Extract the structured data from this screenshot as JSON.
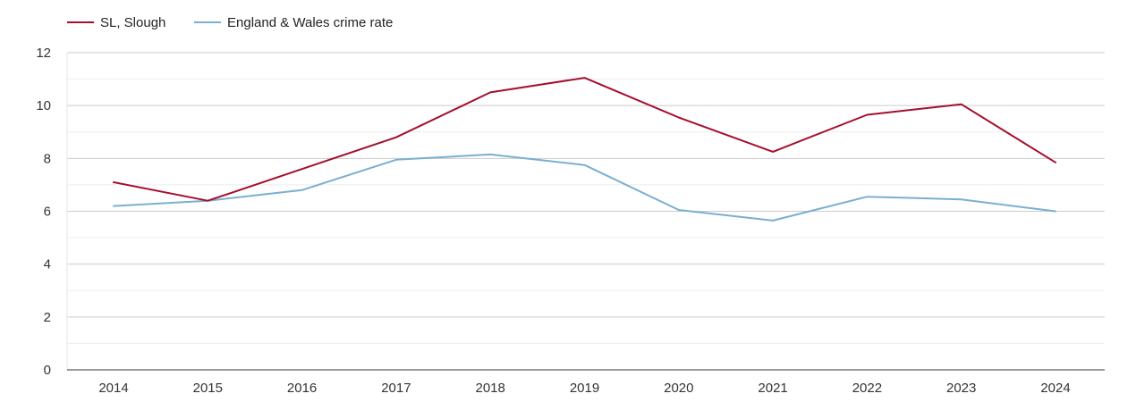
{
  "chart_data": {
    "type": "line",
    "title": "",
    "xlabel": "",
    "ylabel": "",
    "categories": [
      "2014",
      "2015",
      "2016",
      "2017",
      "2018",
      "2019",
      "2020",
      "2021",
      "2022",
      "2023",
      "2024"
    ],
    "ylim": [
      0,
      12
    ],
    "y_ticks": [
      0,
      2,
      4,
      6,
      8,
      10,
      12
    ],
    "grid": true,
    "legend_position": "top-left",
    "series": [
      {
        "name": "SL, Slough",
        "color": "#a50f2d",
        "values": [
          7.1,
          6.4,
          7.6,
          8.8,
          10.5,
          11.05,
          9.55,
          8.25,
          9.65,
          10.05,
          7.85
        ]
      },
      {
        "name": "England & Wales crime rate",
        "color": "#7aafd0",
        "values": [
          6.2,
          6.4,
          6.8,
          7.95,
          8.15,
          7.75,
          6.05,
          5.65,
          6.55,
          6.45,
          6.0
        ]
      }
    ]
  }
}
